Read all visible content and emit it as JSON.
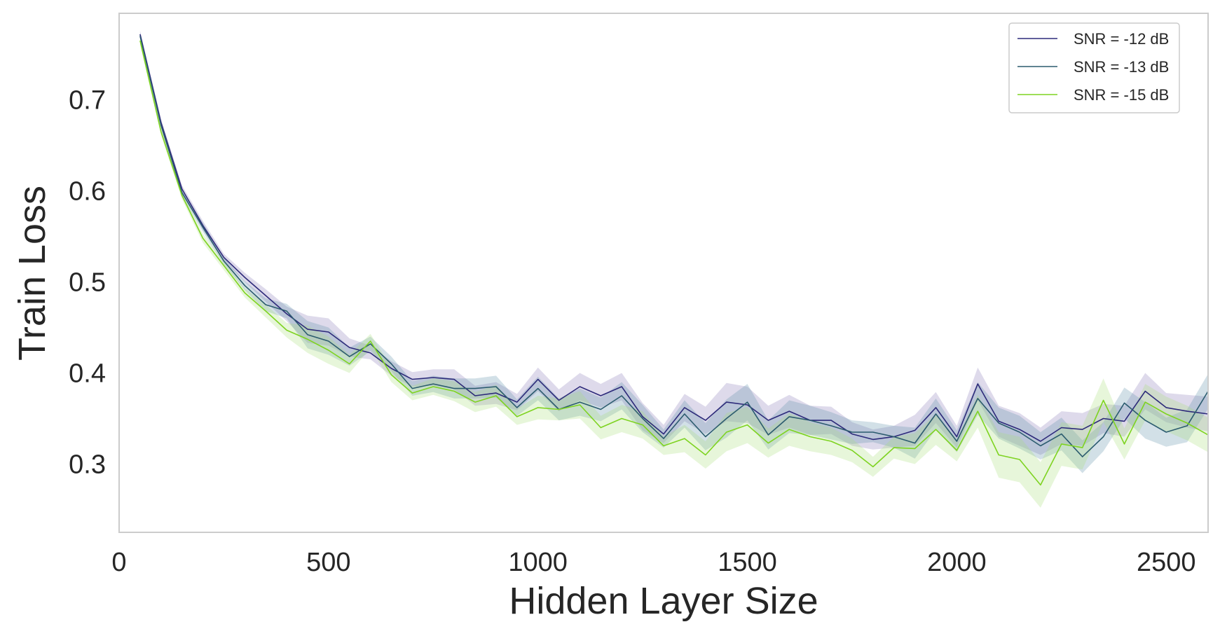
{
  "chart_data": {
    "type": "line",
    "title": "",
    "xlabel": "Hidden Layer Size",
    "ylabel": "Train Loss",
    "xlim": [
      0,
      2600
    ],
    "ylim": [
      0.225,
      0.795
    ],
    "xticks": [
      0,
      500,
      1000,
      1500,
      2000,
      2500
    ],
    "yticks": [
      0.3,
      0.4,
      0.5,
      0.6,
      0.7
    ],
    "xtick_labels": [
      "0",
      "500",
      "1000",
      "1500",
      "2000",
      "2500"
    ],
    "ytick_labels": [
      "0.3",
      "0.4",
      "0.5",
      "0.6",
      "0.7"
    ],
    "grid": false,
    "legend_position": "top-right",
    "x": [
      50,
      100,
      150,
      200,
      250,
      300,
      350,
      400,
      450,
      500,
      550,
      600,
      650,
      700,
      750,
      800,
      850,
      900,
      950,
      1000,
      1050,
      1100,
      1150,
      1200,
      1250,
      1300,
      1350,
      1400,
      1450,
      1500,
      1550,
      1600,
      1650,
      1700,
      1750,
      1800,
      1850,
      1900,
      1950,
      2000,
      2050,
      2100,
      2150,
      2200,
      2250,
      2300,
      2350,
      2400,
      2450,
      2500,
      2550,
      2600
    ],
    "series": [
      {
        "name": "SNR = -12 dB",
        "color": "#2d2a7a",
        "band_color": "#8879b8",
        "values": [
          0.772,
          0.675,
          0.602,
          0.562,
          0.527,
          0.505,
          0.485,
          0.465,
          0.448,
          0.445,
          0.428,
          0.422,
          0.405,
          0.393,
          0.395,
          0.393,
          0.375,
          0.378,
          0.368,
          0.393,
          0.37,
          0.385,
          0.375,
          0.385,
          0.352,
          0.333,
          0.362,
          0.348,
          0.368,
          0.365,
          0.348,
          0.358,
          0.348,
          0.348,
          0.333,
          0.327,
          0.33,
          0.337,
          0.362,
          0.33,
          0.388,
          0.347,
          0.338,
          0.325,
          0.34,
          0.338,
          0.35,
          0.347,
          0.38,
          0.362,
          0.358,
          0.355
        ],
        "lower": [
          0.768,
          0.671,
          0.598,
          0.557,
          0.523,
          0.5,
          0.478,
          0.457,
          0.433,
          0.43,
          0.418,
          0.415,
          0.397,
          0.385,
          0.386,
          0.382,
          0.364,
          0.366,
          0.359,
          0.38,
          0.358,
          0.37,
          0.362,
          0.37,
          0.337,
          0.323,
          0.347,
          0.333,
          0.347,
          0.345,
          0.332,
          0.34,
          0.332,
          0.333,
          0.32,
          0.316,
          0.318,
          0.32,
          0.345,
          0.318,
          0.37,
          0.33,
          0.32,
          0.31,
          0.322,
          0.32,
          0.334,
          0.33,
          0.36,
          0.346,
          0.34,
          0.336
        ],
        "upper": [
          0.776,
          0.679,
          0.606,
          0.567,
          0.531,
          0.51,
          0.492,
          0.473,
          0.463,
          0.46,
          0.438,
          0.43,
          0.413,
          0.401,
          0.404,
          0.404,
          0.386,
          0.39,
          0.377,
          0.406,
          0.382,
          0.4,
          0.388,
          0.4,
          0.367,
          0.343,
          0.377,
          0.363,
          0.389,
          0.385,
          0.364,
          0.376,
          0.364,
          0.363,
          0.346,
          0.338,
          0.342,
          0.354,
          0.379,
          0.342,
          0.406,
          0.364,
          0.356,
          0.34,
          0.358,
          0.356,
          0.366,
          0.364,
          0.4,
          0.378,
          0.376,
          0.374
        ]
      },
      {
        "name": "SNR = -13 dB",
        "color": "#2b5b6e",
        "band_color": "#5f8fa8",
        "values": [
          0.77,
          0.672,
          0.598,
          0.56,
          0.523,
          0.496,
          0.475,
          0.468,
          0.442,
          0.435,
          0.418,
          0.432,
          0.41,
          0.383,
          0.388,
          0.383,
          0.383,
          0.385,
          0.362,
          0.383,
          0.36,
          0.368,
          0.36,
          0.375,
          0.35,
          0.328,
          0.355,
          0.33,
          0.35,
          0.368,
          0.332,
          0.352,
          0.348,
          0.342,
          0.335,
          0.335,
          0.33,
          0.323,
          0.355,
          0.325,
          0.372,
          0.345,
          0.335,
          0.32,
          0.333,
          0.308,
          0.33,
          0.367,
          0.348,
          0.335,
          0.342,
          0.38
        ],
        "lower": [
          0.766,
          0.668,
          0.594,
          0.555,
          0.519,
          0.491,
          0.468,
          0.46,
          0.427,
          0.42,
          0.408,
          0.424,
          0.402,
          0.375,
          0.379,
          0.372,
          0.372,
          0.373,
          0.353,
          0.37,
          0.348,
          0.353,
          0.347,
          0.36,
          0.335,
          0.318,
          0.34,
          0.315,
          0.329,
          0.348,
          0.316,
          0.334,
          0.332,
          0.327,
          0.322,
          0.324,
          0.318,
          0.306,
          0.338,
          0.313,
          0.354,
          0.328,
          0.317,
          0.305,
          0.315,
          0.29,
          0.314,
          0.35,
          0.328,
          0.319,
          0.324,
          0.361
        ],
        "upper": [
          0.774,
          0.676,
          0.602,
          0.565,
          0.527,
          0.501,
          0.482,
          0.476,
          0.457,
          0.45,
          0.428,
          0.44,
          0.418,
          0.391,
          0.397,
          0.394,
          0.394,
          0.397,
          0.371,
          0.396,
          0.372,
          0.383,
          0.373,
          0.39,
          0.365,
          0.338,
          0.37,
          0.345,
          0.371,
          0.388,
          0.348,
          0.37,
          0.364,
          0.357,
          0.348,
          0.346,
          0.342,
          0.34,
          0.372,
          0.337,
          0.39,
          0.362,
          0.353,
          0.335,
          0.351,
          0.326,
          0.346,
          0.384,
          0.368,
          0.351,
          0.36,
          0.399
        ]
      },
      {
        "name": "SNR = -15 dB",
        "color": "#7ed321",
        "band_color": "#a8e07a",
        "values": [
          0.765,
          0.665,
          0.595,
          0.548,
          0.518,
          0.488,
          0.468,
          0.447,
          0.437,
          0.425,
          0.41,
          0.435,
          0.398,
          0.378,
          0.385,
          0.38,
          0.368,
          0.375,
          0.352,
          0.362,
          0.36,
          0.365,
          0.34,
          0.35,
          0.343,
          0.32,
          0.328,
          0.31,
          0.335,
          0.343,
          0.323,
          0.338,
          0.33,
          0.325,
          0.315,
          0.297,
          0.318,
          0.317,
          0.338,
          0.315,
          0.358,
          0.31,
          0.305,
          0.277,
          0.322,
          0.318,
          0.37,
          0.322,
          0.368,
          0.355,
          0.345,
          0.332
        ],
        "lower": [
          0.761,
          0.661,
          0.591,
          0.543,
          0.513,
          0.483,
          0.461,
          0.439,
          0.422,
          0.41,
          0.4,
          0.427,
          0.39,
          0.37,
          0.376,
          0.369,
          0.357,
          0.363,
          0.343,
          0.349,
          0.348,
          0.35,
          0.327,
          0.335,
          0.328,
          0.31,
          0.313,
          0.295,
          0.314,
          0.323,
          0.307,
          0.32,
          0.314,
          0.31,
          0.302,
          0.286,
          0.306,
          0.3,
          0.321,
          0.303,
          0.34,
          0.285,
          0.28,
          0.252,
          0.298,
          0.294,
          0.346,
          0.305,
          0.348,
          0.336,
          0.326,
          0.313
        ],
        "upper": [
          0.769,
          0.669,
          0.599,
          0.553,
          0.523,
          0.493,
          0.475,
          0.455,
          0.452,
          0.44,
          0.42,
          0.443,
          0.406,
          0.386,
          0.394,
          0.391,
          0.379,
          0.387,
          0.361,
          0.375,
          0.372,
          0.38,
          0.353,
          0.365,
          0.358,
          0.33,
          0.343,
          0.325,
          0.356,
          0.363,
          0.339,
          0.356,
          0.346,
          0.34,
          0.328,
          0.308,
          0.33,
          0.334,
          0.355,
          0.327,
          0.376,
          0.335,
          0.33,
          0.302,
          0.346,
          0.342,
          0.394,
          0.339,
          0.388,
          0.374,
          0.364,
          0.351
        ]
      }
    ]
  }
}
